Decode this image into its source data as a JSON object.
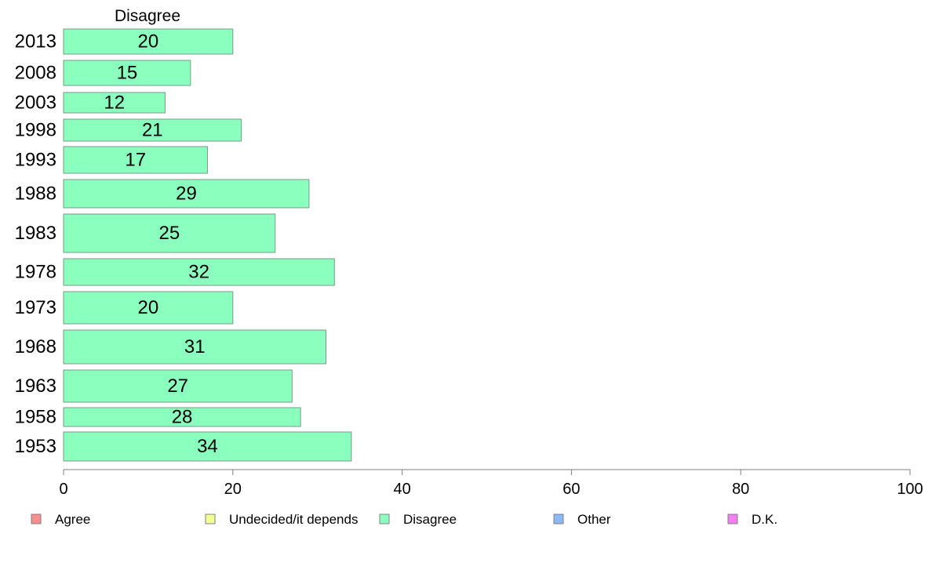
{
  "chart_data": {
    "type": "bar",
    "orientation": "horizontal",
    "title": "",
    "facet_label": "Disagree",
    "xlabel": "",
    "ylabel": "",
    "xlim": [
      0,
      100
    ],
    "x_ticks": [
      0,
      20,
      40,
      60,
      80,
      100
    ],
    "grid": false,
    "legend_position": "bottom",
    "categories": [
      "2013",
      "2008",
      "2003",
      "1998",
      "1993",
      "1988",
      "1983",
      "1978",
      "1973",
      "1968",
      "1963",
      "1958",
      "1953"
    ],
    "series": [
      {
        "name": "Disagree",
        "color": "#8affbe",
        "values": [
          20,
          15,
          12,
          21,
          17,
          29,
          25,
          32,
          20,
          31,
          27,
          28,
          34
        ],
        "labels": [
          "20",
          "15",
          "12",
          "21",
          "17",
          "29",
          "25",
          "32",
          "20",
          "31",
          "27",
          "28",
          "34"
        ]
      }
    ],
    "legend": [
      {
        "label": "Agree",
        "color": "#f88e8e"
      },
      {
        "label": "Undecided/it depends",
        "color": "#f2ff96"
      },
      {
        "label": "Disagree",
        "color": "#8affbe"
      },
      {
        "label": "Other",
        "color": "#8ab8f8"
      },
      {
        "label": "D.K.",
        "color": "#f27ef2"
      }
    ]
  }
}
